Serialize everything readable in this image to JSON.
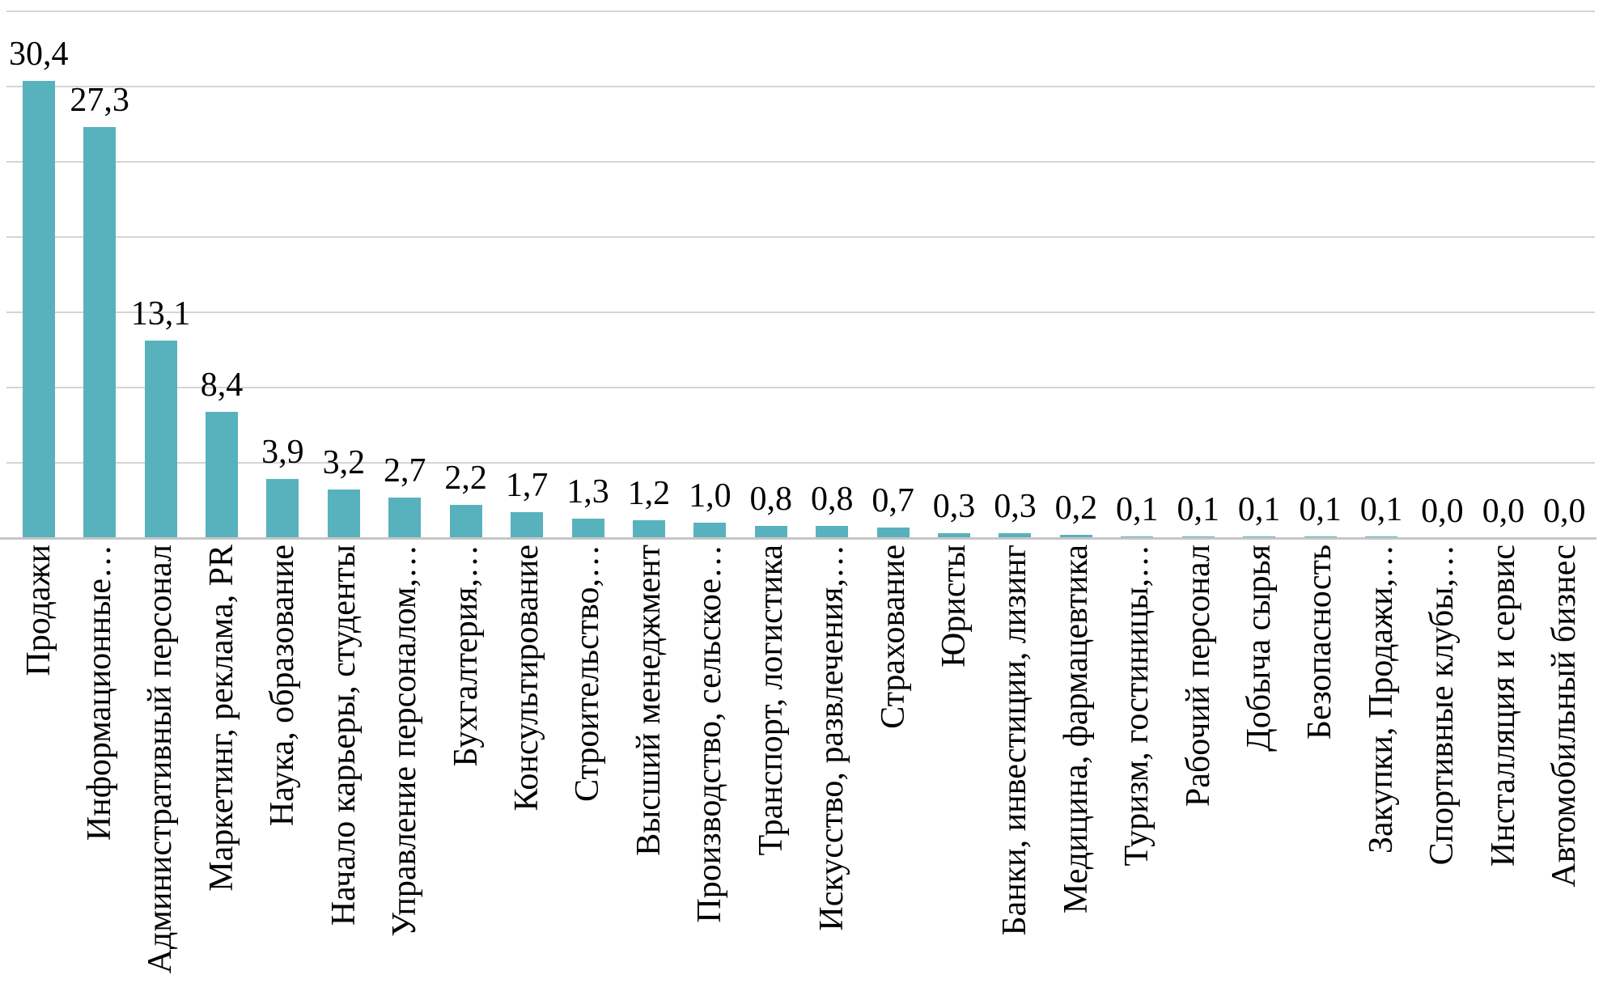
{
  "chart_data": {
    "type": "bar",
    "title": "",
    "xlabel": "",
    "ylabel": "",
    "categories": [
      "Продажи",
      "Информационные…",
      "Административный персонал",
      "Маркетинг, реклама, PR",
      "Наука, образование",
      "Начало карьеры, студенты",
      "Управление персоналом,…",
      "Бухгалтерия,…",
      "Консультирование",
      "Строительство,…",
      "Высший менеджмент",
      "Производство, сельское…",
      "Транспорт, логистика",
      "Искусство, развлечения,…",
      "Страхование",
      "Юристы",
      "Банки, инвестиции, лизинг",
      "Медицина, фармацевтика",
      "Туризм, гостиницы,…",
      "Рабочий персонал",
      "Добыча сырья",
      "Безопасность",
      "Закупки, Продажи,…",
      "Спортивные клубы,…",
      "Инсталляция и сервис",
      "Автомобильный бизнес"
    ],
    "values": [
      30.4,
      27.3,
      13.1,
      8.4,
      3.9,
      3.2,
      2.7,
      2.2,
      1.7,
      1.3,
      1.2,
      1.0,
      0.8,
      0.8,
      0.7,
      0.3,
      0.3,
      0.2,
      0.1,
      0.1,
      0.1,
      0.1,
      0.1,
      0.0,
      0.0,
      0.0
    ],
    "value_labels": [
      "30,4",
      "27,3",
      "13,1",
      "8,4",
      "3,9",
      "3,2",
      "2,7",
      "2,2",
      "1,7",
      "1,3",
      "1,2",
      "1,0",
      "0,8",
      "0,8",
      "0,7",
      "0,3",
      "0,3",
      "0,2",
      "0,1",
      "0,1",
      "0,1",
      "0,1",
      "0,1",
      "0,0",
      "0,0",
      "0,0"
    ],
    "decimal_separator": ",",
    "ylim": [
      0,
      35
    ],
    "gridline_step": 5,
    "grid": true,
    "legend": "none",
    "bar_color": "#58B2BD",
    "gridline_color": "#D4D4D4",
    "axis_color": "#C6C6C6",
    "text_color": "#000000"
  }
}
